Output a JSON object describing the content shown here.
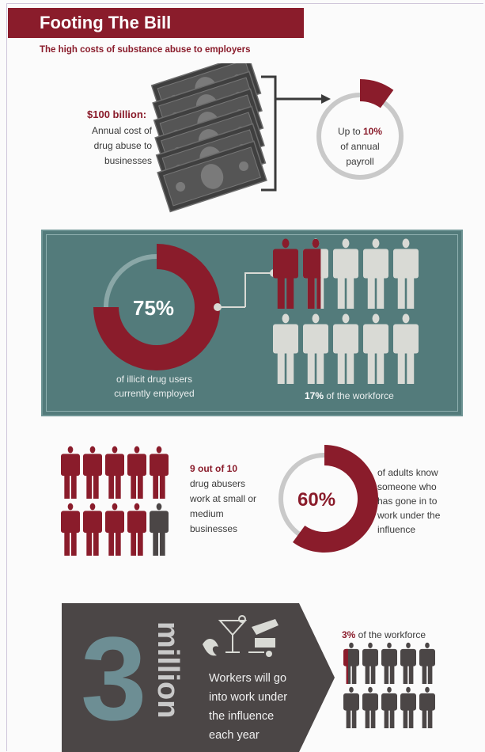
{
  "header": {
    "title": "Footing The Bill",
    "subtitle": "The high costs of substance abuse to employers"
  },
  "section_cost": {
    "amount": "$100 billion:",
    "desc_line1": "Annual cost of",
    "desc_line2": "drug abuse to",
    "desc_line3": "businesses",
    "payroll_prefix": "Up to ",
    "payroll_pct": "10%",
    "payroll_line2": "of annual",
    "payroll_line3": "payroll",
    "payroll_fraction": 0.1
  },
  "section_employed": {
    "pct_label": "75%",
    "pct_fraction": 0.75,
    "caption_line1": "of illicit drug users",
    "caption_line2": "currently employed",
    "workforce_pct": "17%",
    "workforce_text": " of the workforce",
    "workforce_fraction": 0.17
  },
  "section_small_business": {
    "count_text": "9 out of 10",
    "line2": "drug abusers",
    "line3": "work at small or",
    "line4": "medium",
    "line5": "businesses",
    "highlighted": 9,
    "total": 10
  },
  "section_adults": {
    "pct_label": "60%",
    "pct_fraction": 0.6,
    "line1": "of adults know",
    "line2": "someone who",
    "line3": "has gone in to",
    "line4": "work under the",
    "line5": "influence"
  },
  "section_influence": {
    "big_number": "3",
    "big_word": "million",
    "line1": "Workers will go",
    "line2": "into work under",
    "line3": "the influence",
    "line4": "each year",
    "workforce_pct": "3%",
    "workforce_text": " of the workforce",
    "workforce_fraction": 0.03
  },
  "colors": {
    "maroon": "#8a1c2b",
    "dark_gray": "#4b4646",
    "teal": "#537b7b",
    "light_figure": "#d9dad5",
    "ring_gray": "#c9c9c9"
  }
}
